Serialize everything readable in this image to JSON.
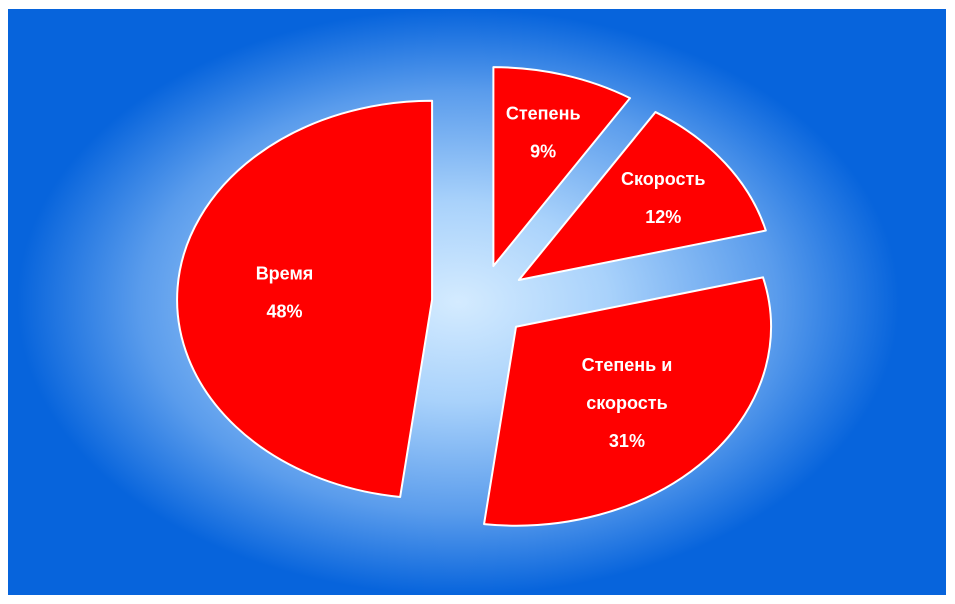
{
  "chart_data": {
    "type": "pie",
    "title": "",
    "exploded": true,
    "background": {
      "outer": "#0764dc",
      "center": "#d4ebff"
    },
    "slice_color": "#ff0000",
    "slices": [
      {
        "category_lines": [
          "Степень"
        ],
        "value": 9,
        "percent_label": "9%"
      },
      {
        "category_lines": [
          "Скорость"
        ],
        "value": 12,
        "percent_label": "12%"
      },
      {
        "category_lines": [
          "Степень и",
          "скорость"
        ],
        "value": 31,
        "percent_label": "31%"
      },
      {
        "category_lines": [
          "Время"
        ],
        "value": 48,
        "percent_label": "48%"
      }
    ]
  }
}
